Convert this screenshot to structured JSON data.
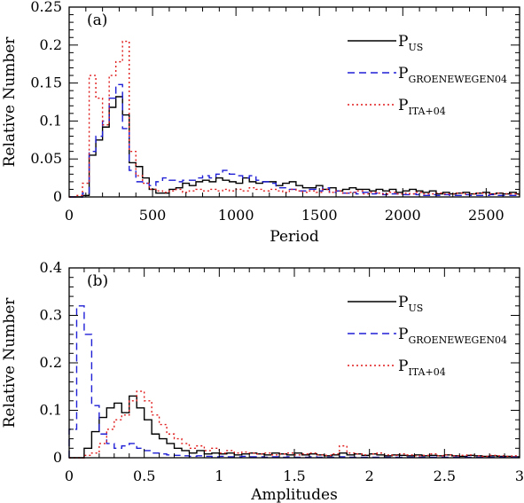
{
  "chart_data": [
    {
      "type": "line",
      "panel_label": "(a)",
      "xlabel": "Period",
      "ylabel": "Relative Number",
      "xlim": [
        0,
        2700
      ],
      "ylim": [
        0,
        0.25
      ],
      "xticks": [
        0,
        500,
        1000,
        1500,
        2000,
        2500
      ],
      "xtick_labels": [
        "0",
        "500",
        "1000",
        "1500",
        "2000",
        "2500"
      ],
      "yticks": [
        0,
        0.05,
        0.1,
        0.15,
        0.2,
        0.25
      ],
      "ytick_labels": [
        "0",
        "0.05",
        "0.1",
        "0.15",
        "0.2",
        "0.25"
      ],
      "xminor_step": 100,
      "yminor_step": 0.01,
      "bin_width": 40,
      "step_style": "histogram",
      "legend_position": "top-right",
      "series": [
        {
          "name_base": "P",
          "name_sub": "US",
          "color": "#000000",
          "dash": "",
          "x": [
            0,
            40,
            80,
            120,
            160,
            200,
            240,
            280,
            320,
            360,
            400,
            440,
            480,
            520,
            560,
            600,
            640,
            680,
            720,
            760,
            800,
            840,
            880,
            920,
            960,
            1000,
            1040,
            1080,
            1120,
            1160,
            1200,
            1240,
            1280,
            1320,
            1360,
            1400,
            1440,
            1480,
            1520,
            1560,
            1600,
            1640,
            1680,
            1720,
            1760,
            1800,
            1840,
            1880,
            1920,
            1960,
            2000,
            2040,
            2080,
            2120,
            2160,
            2200,
            2240,
            2280,
            2320,
            2360,
            2400,
            2440,
            2480,
            2520,
            2560,
            2600,
            2640,
            2680
          ],
          "values": [
            0,
            0,
            0.002,
            0.055,
            0.075,
            0.092,
            0.118,
            0.132,
            0.108,
            0.045,
            0.04,
            0.025,
            0.01,
            0.005,
            0.005,
            0.01,
            0.012,
            0.018,
            0.015,
            0.02,
            0.022,
            0.02,
            0.025,
            0.022,
            0.02,
            0.018,
            0.025,
            0.02,
            0.018,
            0.02,
            0.02,
            0.015,
            0.018,
            0.02,
            0.015,
            0.012,
            0.012,
            0.015,
            0.01,
            0.012,
            0.008,
            0.01,
            0.012,
            0.01,
            0.01,
            0.008,
            0.01,
            0.008,
            0.01,
            0.006,
            0.008,
            0.01,
            0.008,
            0.006,
            0.008,
            0.004,
            0.006,
            0.004,
            0.005,
            0.006,
            0.004,
            0.005,
            0.006,
            0.004,
            0.005,
            0.004,
            0.006,
            0.004
          ]
        },
        {
          "name_base": "P",
          "name_sub": "GROENEWEGEN04",
          "color": "#1f1fd6",
          "dash": "8,5",
          "x": [
            0,
            40,
            80,
            120,
            160,
            200,
            240,
            280,
            320,
            360,
            400,
            440,
            480,
            520,
            560,
            600,
            640,
            680,
            720,
            760,
            800,
            840,
            880,
            920,
            960,
            1000,
            1040,
            1080,
            1120,
            1160,
            1200,
            1240,
            1280,
            1320,
            1360,
            1400,
            1440,
            1480,
            1520,
            1560,
            1600,
            1640,
            1680,
            1720,
            1760,
            1800,
            1840,
            1880,
            1920,
            1960,
            2000,
            2040,
            2080,
            2120,
            2160,
            2200,
            2240,
            2280,
            2320,
            2360,
            2400,
            2440,
            2480,
            2520,
            2560,
            2600,
            2640,
            2680
          ],
          "values": [
            0,
            0,
            0.005,
            0.06,
            0.08,
            0.1,
            0.13,
            0.148,
            0.09,
            0.035,
            0.02,
            0.018,
            0.015,
            0.02,
            0.025,
            0.022,
            0.02,
            0.022,
            0.022,
            0.025,
            0.028,
            0.025,
            0.03,
            0.035,
            0.03,
            0.028,
            0.025,
            0.028,
            0.022,
            0.02,
            0.018,
            0.012,
            0.012,
            0.01,
            0.008,
            0.008,
            0.01,
            0.008,
            0.012,
            0.006,
            0.008,
            0.005,
            0.006,
            0.004,
            0.006,
            0.004,
            0.005,
            0.003,
            0.004,
            0.004,
            0.003,
            0.004,
            0.003,
            0.002,
            0.003,
            0.002,
            0.003,
            0.002,
            0.002,
            0.003,
            0.002,
            0.002,
            0.002,
            0.003,
            0.002,
            0.002,
            0.002,
            0.002
          ]
        },
        {
          "name_base": "P",
          "name_sub": "ITA+04",
          "color": "#e01b1b",
          "dash": "2,3",
          "x": [
            0,
            40,
            80,
            120,
            160,
            200,
            240,
            280,
            320,
            360,
            400,
            440,
            480,
            520,
            560,
            600,
            640,
            680,
            720,
            760,
            800,
            840,
            880,
            920,
            960,
            1000,
            1040,
            1080,
            1120,
            1160,
            1200,
            1240,
            1280,
            1320,
            1360,
            1400,
            1440,
            1480,
            1520,
            1560,
            1600,
            1640,
            1680,
            1720,
            1760,
            1800,
            1840,
            1880,
            1920,
            1960,
            2000,
            2040,
            2080,
            2120,
            2160,
            2200,
            2240,
            2280,
            2320,
            2360,
            2400,
            2440,
            2480,
            2520,
            2560,
            2600,
            2640,
            2680
          ],
          "values": [
            0,
            0.002,
            0.018,
            0.16,
            0.13,
            0.095,
            0.16,
            0.178,
            0.205,
            0.06,
            0.028,
            0.018,
            0.01,
            0.008,
            0.006,
            0.008,
            0.01,
            0.006,
            0.008,
            0.01,
            0.008,
            0.01,
            0.008,
            0.01,
            0.008,
            0.01,
            0.008,
            0.012,
            0.01,
            0.008,
            0.01,
            0.008,
            0.006,
            0.01,
            0.008,
            0.006,
            0.008,
            0.006,
            0.01,
            0.006,
            0.008,
            0.005,
            0.006,
            0.008,
            0.004,
            0.006,
            0.005,
            0.004,
            0.006,
            0.004,
            0.005,
            0.004,
            0.006,
            0.004,
            0.004,
            0.005,
            0.004,
            0.004,
            0.005,
            0.004,
            0.004,
            0.005,
            0.004,
            0.004,
            0.005,
            0.004,
            0.004,
            0.003
          ]
        }
      ]
    },
    {
      "type": "line",
      "panel_label": "(b)",
      "xlabel": "Amplitudes",
      "ylabel": "Relative Number",
      "xlim": [
        0,
        3
      ],
      "ylim": [
        0,
        0.4
      ],
      "xticks": [
        0,
        0.5,
        1,
        1.5,
        2,
        2.5,
        3
      ],
      "xtick_labels": [
        "0",
        "0.5",
        "1",
        "1.5",
        "2",
        "2.5",
        "3"
      ],
      "yticks": [
        0,
        0.1,
        0.2,
        0.3,
        0.4
      ],
      "ytick_labels": [
        "0",
        "0.1",
        "0.2",
        "0.3",
        "0.4"
      ],
      "xminor_step": 0.1,
      "yminor_step": 0.02,
      "bin_width": 0.05,
      "step_style": "histogram",
      "legend_position": "top-right",
      "series": [
        {
          "name_base": "P",
          "name_sub": "US",
          "color": "#000000",
          "dash": "",
          "x": [
            0,
            0.05,
            0.1,
            0.15,
            0.2,
            0.25,
            0.3,
            0.35,
            0.4,
            0.45,
            0.5,
            0.55,
            0.6,
            0.65,
            0.7,
            0.75,
            0.8,
            0.85,
            0.9,
            0.95,
            1.0,
            1.05,
            1.1,
            1.15,
            1.2,
            1.25,
            1.3,
            1.35,
            1.4,
            1.45,
            1.5,
            1.55,
            1.6,
            1.65,
            1.7,
            1.75,
            1.8,
            1.85,
            1.9,
            1.95,
            2.0,
            2.05,
            2.1,
            2.15,
            2.2,
            2.25,
            2.3,
            2.35,
            2.4,
            2.45,
            2.5,
            2.55,
            2.6,
            2.65,
            2.7,
            2.75,
            2.8,
            2.85,
            2.9,
            2.95
          ],
          "values": [
            0,
            0,
            0.02,
            0.055,
            0.085,
            0.105,
            0.115,
            0.095,
            0.13,
            0.105,
            0.08,
            0.05,
            0.04,
            0.03,
            0.02,
            0.015,
            0.01,
            0.015,
            0.008,
            0.01,
            0.008,
            0.01,
            0.006,
            0.008,
            0.01,
            0.008,
            0.006,
            0.01,
            0.008,
            0.006,
            0.01,
            0.006,
            0.008,
            0.006,
            0.004,
            0.006,
            0.01,
            0.006,
            0.008,
            0.005,
            0.008,
            0.006,
            0.004,
            0.006,
            0.005,
            0.004,
            0.006,
            0.004,
            0.005,
            0.004,
            0.006,
            0.004,
            0.003,
            0.005,
            0.004,
            0.003,
            0.004,
            0.003,
            0.003,
            0.002
          ]
        },
        {
          "name_base": "P",
          "name_sub": "GROENEWEGEN04",
          "color": "#1f1fd6",
          "dash": "8,5",
          "x": [
            0,
            0.05,
            0.1,
            0.15,
            0.2,
            0.25,
            0.3,
            0.35,
            0.4,
            0.45,
            0.5,
            0.55,
            0.6,
            0.65,
            0.7,
            0.75,
            0.8,
            0.85,
            0.9,
            0.95,
            1.0,
            1.05,
            1.1,
            1.15,
            1.2,
            1.25,
            1.3,
            1.35,
            1.4,
            1.45,
            1.5,
            1.55,
            1.6,
            1.65,
            1.7,
            1.75,
            1.8,
            1.85,
            1.9,
            1.95,
            2.0,
            2.05,
            2.1,
            2.15,
            2.2,
            2.25,
            2.3,
            2.35,
            2.4,
            2.45,
            2.5,
            2.55,
            2.6,
            2.65,
            2.7,
            2.75,
            2.8,
            2.85,
            2.9,
            2.95
          ],
          "values": [
            0.06,
            0.32,
            0.26,
            0.11,
            0.05,
            0.03,
            0.02,
            0.025,
            0.03,
            0.02,
            0.015,
            0.01,
            0.008,
            0.006,
            0.005,
            0.004,
            0.003,
            0.004,
            0.003,
            0.002,
            0.003,
            0.002,
            0.002,
            0.003,
            0.002,
            0.002,
            0.001,
            0.002,
            0.001,
            0.002,
            0.001,
            0.001,
            0.002,
            0.001,
            0.001,
            0.001,
            0.002,
            0.001,
            0.001,
            0.001,
            0.001,
            0.001,
            0.001,
            0.001,
            0.001,
            0.001,
            0.001,
            0.001,
            0.001,
            0.001,
            0.001,
            0.001,
            0.001,
            0.001,
            0.001,
            0.001,
            0.001,
            0.001,
            0.001,
            0.001
          ]
        },
        {
          "name_base": "P",
          "name_sub": "ITA+04",
          "color": "#e01b1b",
          "dash": "2,3",
          "x": [
            0,
            0.05,
            0.1,
            0.15,
            0.2,
            0.25,
            0.3,
            0.35,
            0.4,
            0.45,
            0.5,
            0.55,
            0.6,
            0.65,
            0.7,
            0.75,
            0.8,
            0.85,
            0.9,
            0.95,
            1.0,
            1.05,
            1.1,
            1.15,
            1.2,
            1.25,
            1.3,
            1.35,
            1.4,
            1.45,
            1.5,
            1.55,
            1.6,
            1.65,
            1.7,
            1.75,
            1.8,
            1.85,
            1.9,
            1.95,
            2.0,
            2.05,
            2.1,
            2.15,
            2.2,
            2.25,
            2.3,
            2.35,
            2.4,
            2.45,
            2.5,
            2.55,
            2.6,
            2.65,
            2.7,
            2.75,
            2.8,
            2.85,
            2.9,
            2.95
          ],
          "values": [
            0,
            0,
            0.005,
            0.01,
            0.03,
            0.06,
            0.08,
            0.09,
            0.12,
            0.14,
            0.12,
            0.09,
            0.07,
            0.05,
            0.04,
            0.03,
            0.02,
            0.025,
            0.015,
            0.02,
            0.01,
            0.015,
            0.01,
            0.012,
            0.01,
            0.008,
            0.01,
            0.006,
            0.008,
            0.01,
            0.006,
            0.008,
            0.01,
            0.006,
            0.005,
            0.008,
            0.025,
            0.01,
            0.008,
            0.006,
            0.008,
            0.01,
            0.006,
            0.005,
            0.008,
            0.006,
            0.004,
            0.005,
            0.008,
            0.004,
            0.006,
            0.004,
            0.005,
            0.006,
            0.004,
            0.003,
            0.005,
            0.004,
            0.003,
            0.004
          ]
        }
      ]
    }
  ]
}
